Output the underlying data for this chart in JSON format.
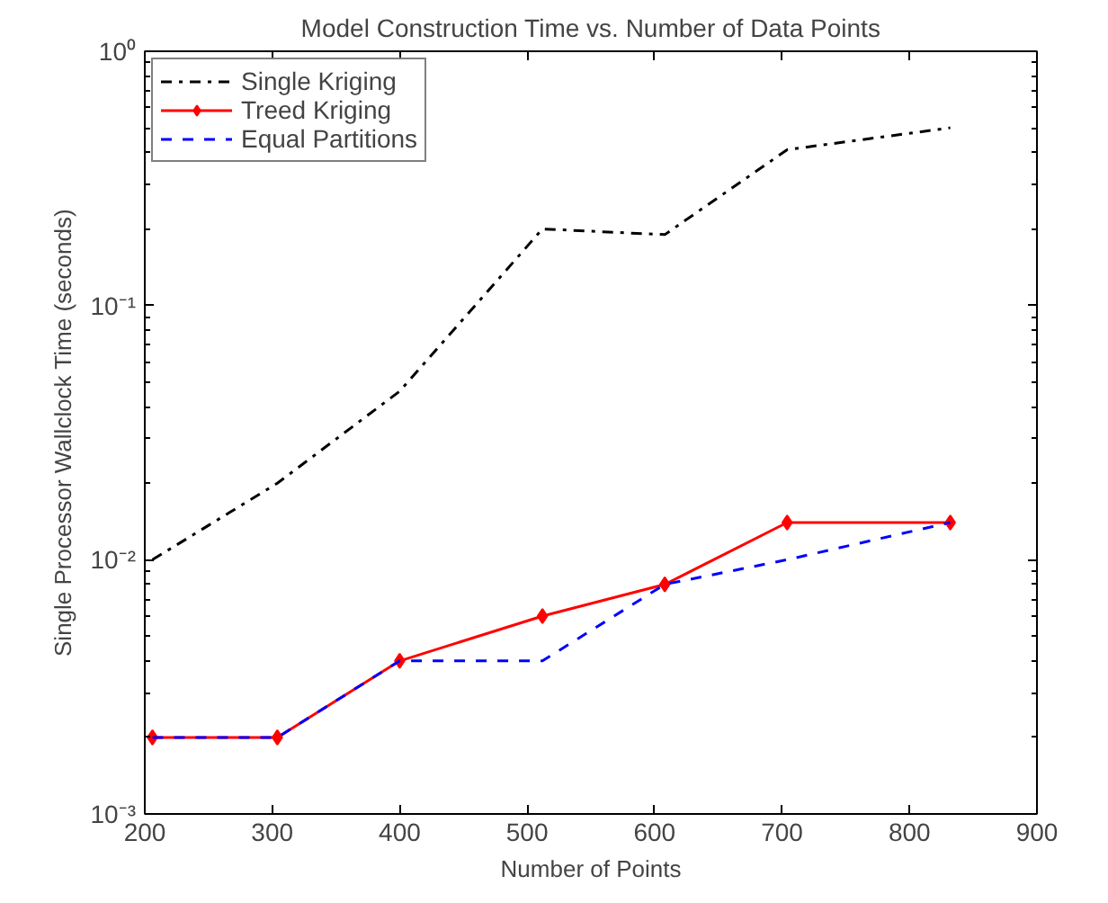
{
  "chart_data": {
    "type": "line",
    "title": "Model Construction Time vs. Number of Data Points",
    "xlabel": "Number of Points",
    "ylabel": "Single Processor Wallclock Time (seconds)",
    "x": [
      206,
      304,
      400,
      512,
      608,
      704,
      832
    ],
    "series": [
      {
        "name": "Single Kriging",
        "color": "#000000",
        "line_style": "dashdot",
        "marker": "none",
        "values": [
          0.01,
          0.02,
          0.046,
          0.2,
          0.19,
          0.41,
          0.5
        ]
      },
      {
        "name": "Treed Kriging",
        "color": "#ff0000",
        "line_style": "solid",
        "marker": "diamond",
        "values": [
          0.002,
          0.002,
          0.004,
          0.006,
          0.008,
          0.014,
          0.014
        ]
      },
      {
        "name": "Equal Partitions",
        "color": "#0000ff",
        "line_style": "dashed",
        "marker": "none",
        "values": [
          0.002,
          0.002,
          0.004,
          0.004,
          0.008,
          0.01,
          0.014
        ]
      }
    ],
    "xlim": [
      200,
      900
    ],
    "xticks": [
      200,
      300,
      400,
      500,
      600,
      700,
      800,
      900
    ],
    "ylim": [
      0.001,
      1
    ],
    "yticks": [
      {
        "value": 0.001,
        "label": "10⁻³"
      },
      {
        "value": 0.01,
        "label": "10⁻²"
      },
      {
        "value": 0.1,
        "label": "10⁻¹"
      },
      {
        "value": 1,
        "label": "10⁰"
      }
    ],
    "log": "y",
    "grid": false,
    "legend": "top left"
  }
}
